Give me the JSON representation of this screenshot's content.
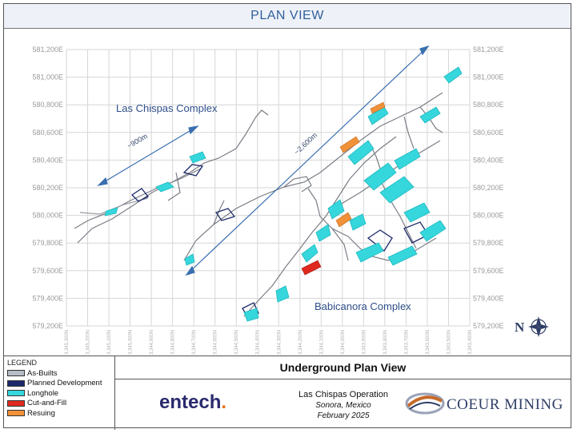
{
  "header": {
    "title": "PLAN VIEW"
  },
  "map": {
    "northing_labels": [
      "581,200E",
      "581,000E",
      "580,800E",
      "580,600E",
      "580,400E",
      "580,200E",
      "580,000E",
      "579,800E",
      "579,600E",
      "579,400E",
      "579,200E"
    ],
    "easting_labels": [
      "3,345,300N",
      "3,345,200N",
      "3,345,100N",
      "3,345,000N",
      "3,344,900N",
      "3,344,800N",
      "3,344,700N",
      "3,344,600N",
      "3,344,500N",
      "3,344,400N",
      "3,344,300N",
      "3,344,200N",
      "3,344,100N",
      "3,344,000N",
      "3,343,900N",
      "3,343,800N",
      "3,343,700N",
      "3,343,600N",
      "3,343,500N",
      "3,343,400N"
    ],
    "annotations": {
      "las_chispas_complex": "Las Chispas Complex",
      "babicanora_complex": "Babicanora Complex",
      "short_span": "~900m",
      "long_span": "~2,600m",
      "north": "N"
    }
  },
  "legend": {
    "title": "LEGEND",
    "items": [
      {
        "label": "As-Builts",
        "color": "#b8bcc6"
      },
      {
        "label": "Planned Development",
        "color": "#1c2a6b"
      },
      {
        "label": "Longhole",
        "color": "#35d7dc"
      },
      {
        "label": "Cut-and-Fill",
        "color": "#e02a1f"
      },
      {
        "label": "Resuing",
        "color": "#f0913a"
      }
    ]
  },
  "title_block": {
    "heading": "Underground Plan View",
    "logo_left": "entech",
    "operation": "Las Chispas Operation",
    "location": "Sonora, Mexico",
    "date": "February 2025",
    "logo_right": "COEUR MINING"
  }
}
